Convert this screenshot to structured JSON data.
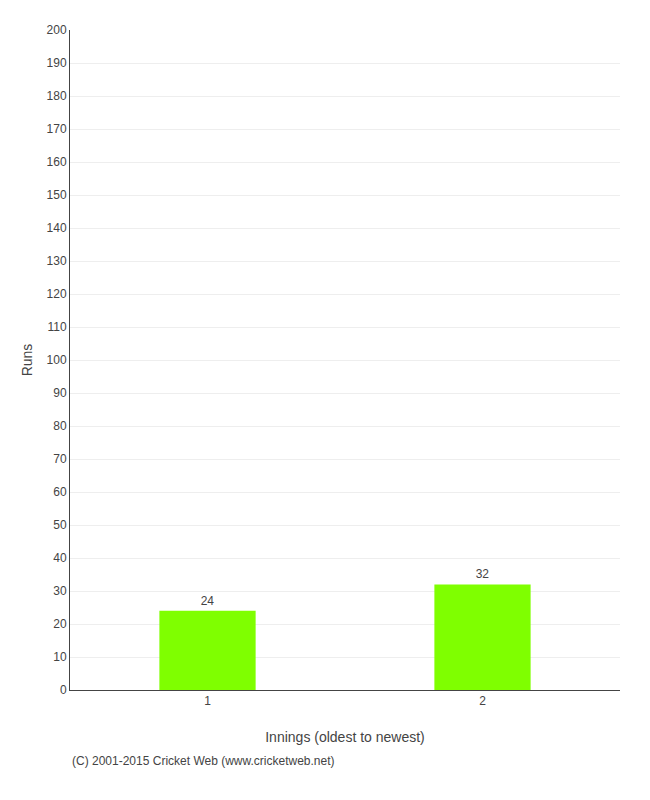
{
  "chart_data": {
    "type": "bar",
    "categories": [
      "1",
      "2"
    ],
    "values": [
      24,
      32
    ],
    "color": "#7fff00",
    "data_labels": true,
    "xlabel": "Innings (oldest to newest)",
    "ylabel": "Runs",
    "ylim": [
      0,
      200
    ],
    "yticks": [
      0,
      10,
      20,
      30,
      40,
      50,
      60,
      70,
      80,
      90,
      100,
      110,
      120,
      130,
      140,
      150,
      160,
      170,
      180,
      190,
      200
    ],
    "grid": true,
    "annotations": [
      "(C) 2001-2015 Cricket Web (www.cricketweb.net)"
    ]
  }
}
